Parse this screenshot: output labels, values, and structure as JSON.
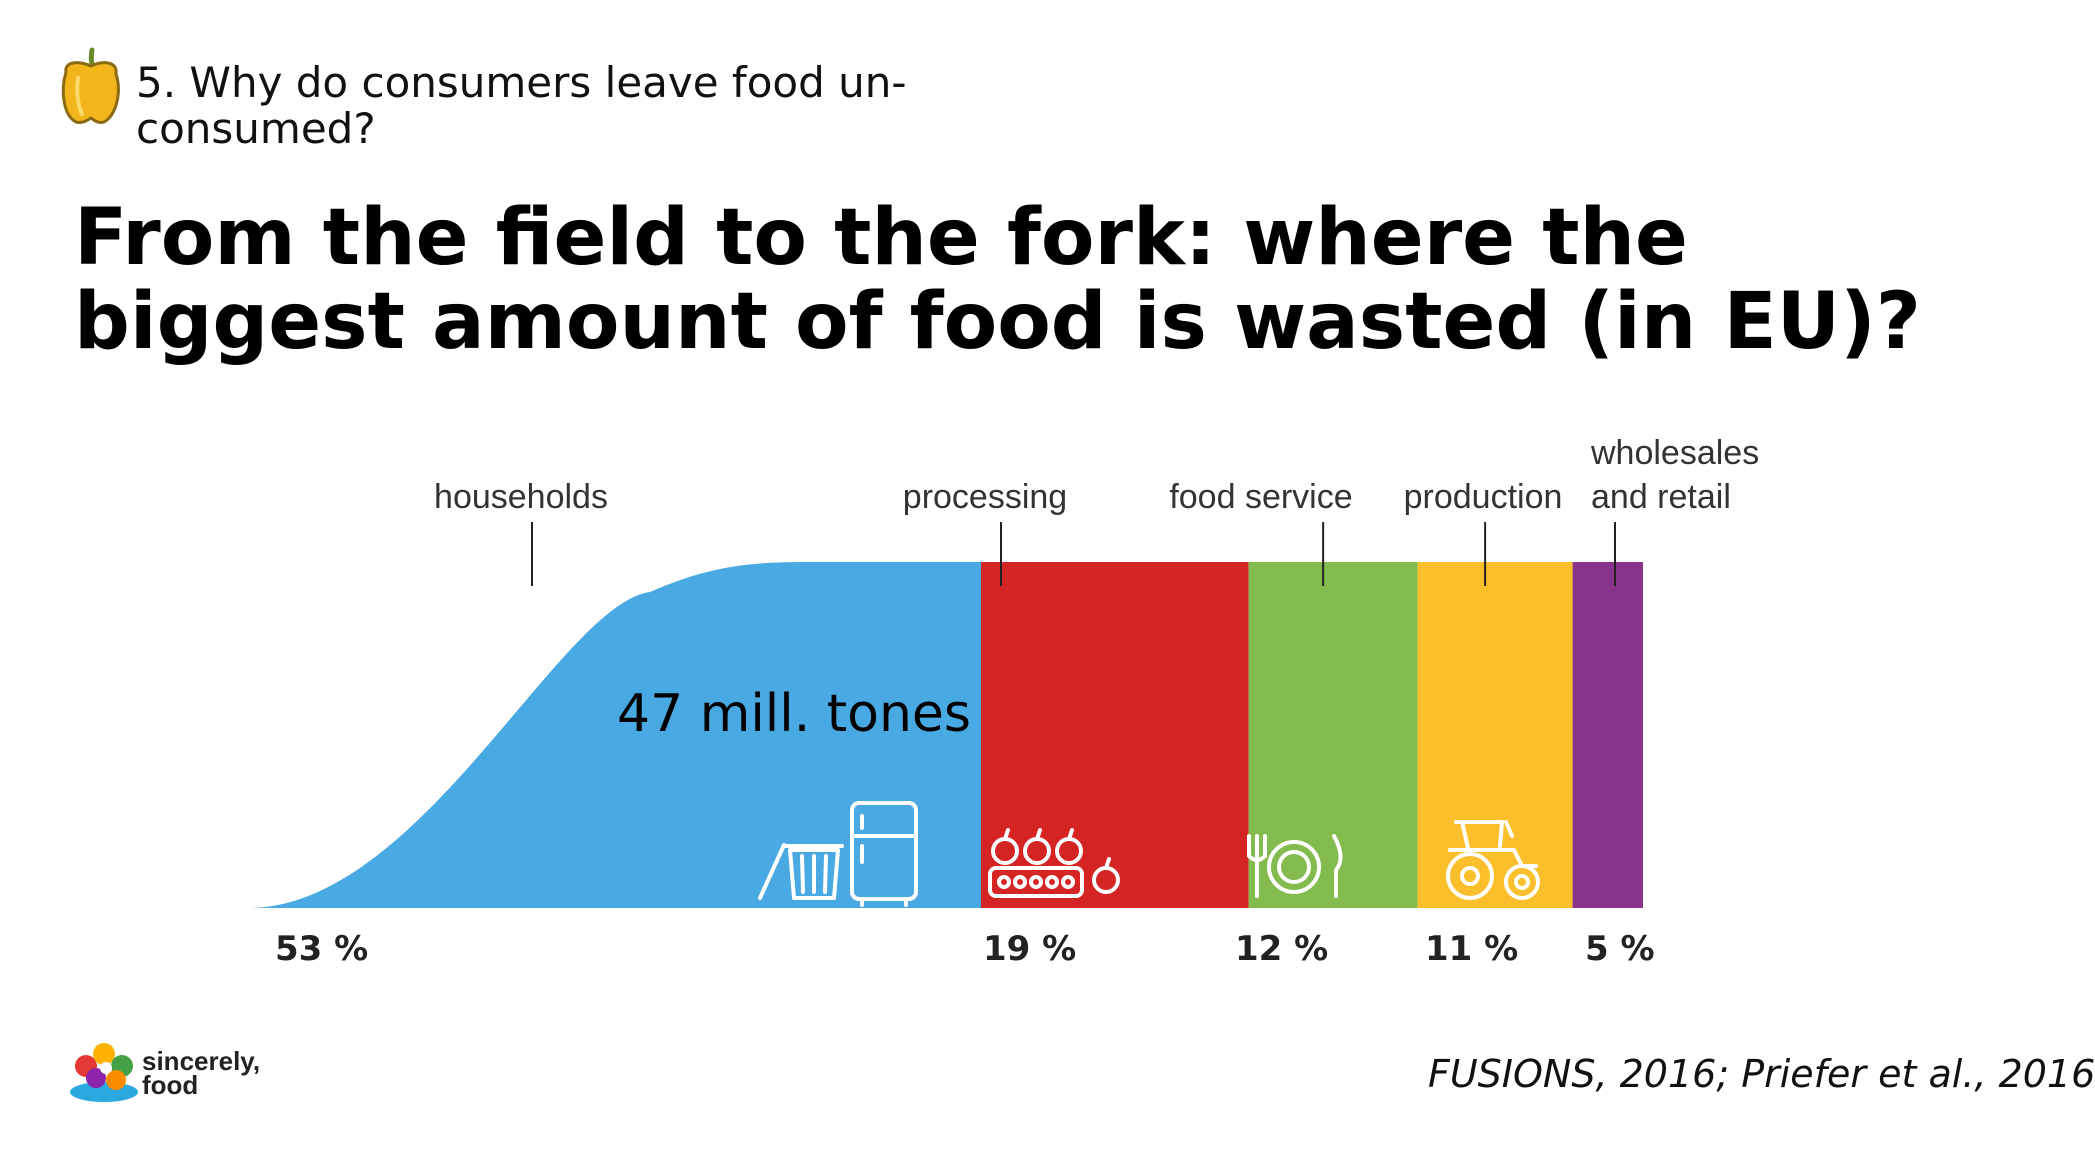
{
  "header": {
    "section_title": "5. Why do consumers leave food un-consumed?",
    "icon": "bell-pepper-icon"
  },
  "slide": {
    "title": "From the field to the fork: where the biggest amount of food is wasted (in EU)?"
  },
  "chart_data": {
    "type": "bar",
    "title": "",
    "categories": [
      "households",
      "processing",
      "food service",
      "production",
      "wholesales and retail"
    ],
    "values": [
      53,
      19,
      12,
      11,
      5
    ],
    "value_labels": [
      "53 %",
      "19 %",
      "12 %",
      "11 %",
      "5 %"
    ],
    "unit": "%",
    "colors": [
      "#48a9e3",
      "#d42424",
      "#84bb4f",
      "#fbbf2b",
      "#87348a"
    ],
    "annotation": "47 mill. tones",
    "legend": "none",
    "grid": false,
    "icons": [
      "trash-bin-icon",
      "fridge-icon",
      "conveyor-apples-icon",
      "plate-cutlery-icon",
      "tractor-icon"
    ]
  },
  "footer": {
    "brand_line1": "sincerely,",
    "brand_line2": "food",
    "source": "FUSIONS, 2016; Priefer et al., 2016"
  }
}
